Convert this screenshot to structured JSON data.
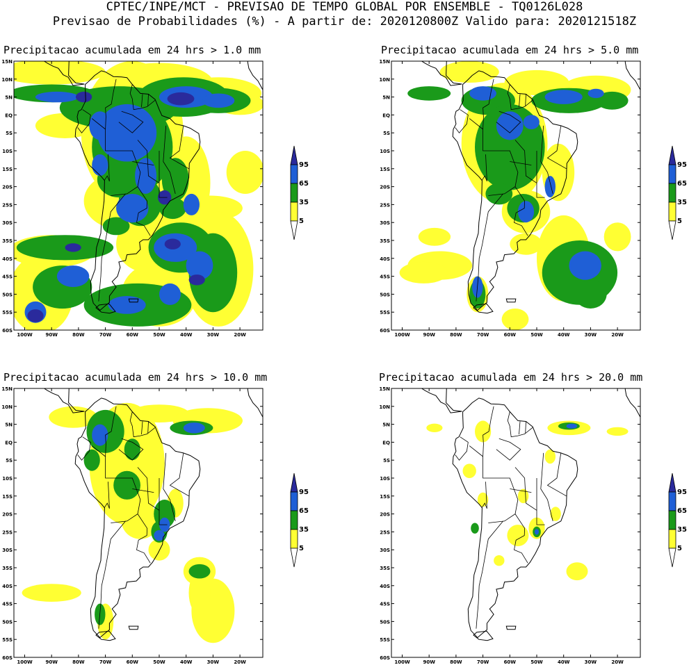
{
  "header": {
    "line1": "CPTEC/INPE/MCT - PREVISAO DE TEMPO GLOBAL POR ENSEMBLE - TQ0126L028",
    "line2": "Previsao de Probabilidades (%) -  A partir de: 2020120800Z  Valido para: 2020121518Z"
  },
  "colors": {
    "p5": "#ffff33",
    "p35": "#1a9a1a",
    "p65": "#1f5fd6",
    "p95": "#2a2a9c",
    "land": "#ffffff"
  },
  "lat_labels": [
    "15N",
    "10N",
    "5N",
    "EQ",
    "5S",
    "10S",
    "15S",
    "20S",
    "25S",
    "30S",
    "35S",
    "40S",
    "45S",
    "50S",
    "55S",
    "60S"
  ],
  "lon_labels": [
    "100W",
    "90W",
    "80W",
    "70W",
    "60W",
    "50W",
    "40W",
    "30W",
    "20W"
  ],
  "legend_labels": [
    "95",
    "65",
    "35",
    "5"
  ],
  "panels": [
    {
      "title": "Precipitacao acumulada em 24 hrs > 1.0 mm"
    },
    {
      "title": "Precipitacao acumulada em 24 hrs > 5.0 mm"
    },
    {
      "title": "Precipitacao acumulada em 24 hrs > 10.0 mm"
    },
    {
      "title": "Precipitacao acumulada em 24 hrs > 20.0 mm"
    }
  ]
}
